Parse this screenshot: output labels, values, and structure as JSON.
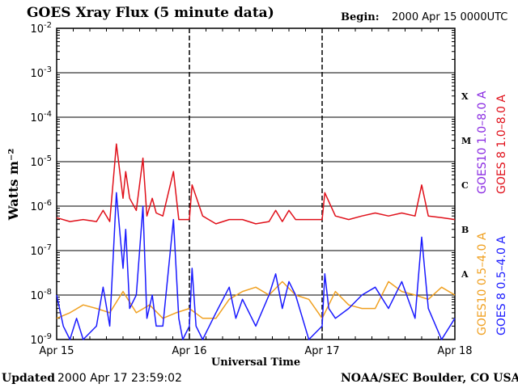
{
  "header": {
    "title": "GOES Xray Flux (5 minute data)",
    "begin_label": "Begin:",
    "begin_value": "2000 Apr 15 0000UTC"
  },
  "footer": {
    "updated_label": "Updated",
    "updated_value": "2000 Apr 17 23:59:02",
    "credit": "NOAA/SEC Boulder, CO USA"
  },
  "colors": {
    "goes8_long": "#e0101a",
    "goes10_long": "#8a2be2",
    "goes10_short": "#f0a020",
    "goes8_short": "#1a1aff",
    "ink": "#000000"
  },
  "chart_data": {
    "type": "line",
    "title": "GOES Xray Flux (5 minute data)",
    "xlabel": "Universal Time",
    "ylabel": "Watts m⁻²",
    "yscale": "log",
    "ylim": [
      1e-09,
      0.01
    ],
    "xlim": [
      0,
      3
    ],
    "y_ticks": [
      {
        "exp": "-2",
        "value": 0.01
      },
      {
        "exp": "-3",
        "value": 0.001
      },
      {
        "exp": "-4",
        "value": 0.0001
      },
      {
        "exp": "-5",
        "value": 1e-05
      },
      {
        "exp": "-6",
        "value": 1e-06
      },
      {
        "exp": "-7",
        "value": 1e-07
      },
      {
        "exp": "-8",
        "value": 1e-08
      },
      {
        "exp": "-9",
        "value": 1e-09
      }
    ],
    "x_ticks": [
      {
        "label": "Apr 15",
        "day": 0
      },
      {
        "label": "Apr 16",
        "day": 1
      },
      {
        "label": "Apr 17",
        "day": 2
      },
      {
        "label": "Apr 18",
        "day": 3
      }
    ],
    "flare_classes": [
      {
        "label": "X",
        "value": 0.0003
      },
      {
        "label": "M",
        "value": 3e-05
      },
      {
        "label": "C",
        "value": 3e-06
      },
      {
        "label": "B",
        "value": 3e-07
      },
      {
        "label": "A",
        "value": 3e-08
      }
    ],
    "legend": [
      {
        "label": "GOES10 1.0–8.0 A",
        "color": "#8a2be2"
      },
      {
        "label": "GOES 8 1.0–8.0 A",
        "color": "#e0101a"
      },
      {
        "label": "GOES10 0.5–4.0 A",
        "color": "#f0a020"
      },
      {
        "label": "GOES 8 0.5–4.0 A",
        "color": "#1a1aff"
      }
    ],
    "series": [
      {
        "name": "GOES 8 1.0–8.0 A",
        "color": "#e0101a",
        "x": [
          0,
          0.1,
          0.2,
          0.3,
          0.35,
          0.4,
          0.45,
          0.5,
          0.52,
          0.55,
          0.6,
          0.65,
          0.68,
          0.72,
          0.75,
          0.8,
          0.88,
          0.92,
          1.0,
          1.02,
          1.1,
          1.2,
          1.3,
          1.4,
          1.5,
          1.6,
          1.65,
          1.7,
          1.75,
          1.8,
          1.9,
          2.0,
          2.02,
          2.1,
          2.2,
          2.3,
          2.4,
          2.5,
          2.6,
          2.7,
          2.75,
          2.8,
          2.9,
          3.0
        ],
        "y": [
          5.5e-07,
          4.5e-07,
          5e-07,
          4.5e-07,
          8e-07,
          4.5e-07,
          2.5e-05,
          1.5e-06,
          6e-06,
          1.5e-06,
          8e-07,
          1.2e-05,
          6e-07,
          1.5e-06,
          7e-07,
          6e-07,
          6e-06,
          5e-07,
          5e-07,
          3e-06,
          6e-07,
          4e-07,
          5e-07,
          5e-07,
          4e-07,
          4.5e-07,
          8e-07,
          4.5e-07,
          8e-07,
          5e-07,
          5e-07,
          5e-07,
          2e-06,
          6e-07,
          5e-07,
          6e-07,
          7e-07,
          6e-07,
          7e-07,
          6e-07,
          3e-06,
          6e-07,
          5.5e-07,
          5e-07
        ]
      },
      {
        "name": "GOES10 0.5–4.0 A",
        "color": "#f0a020",
        "x": [
          0,
          0.1,
          0.2,
          0.3,
          0.4,
          0.5,
          0.6,
          0.7,
          0.8,
          0.9,
          1.0,
          1.1,
          1.2,
          1.3,
          1.4,
          1.5,
          1.6,
          1.7,
          1.8,
          1.9,
          2.0,
          2.1,
          2.2,
          2.3,
          2.4,
          2.5,
          2.6,
          2.7,
          2.8,
          2.9,
          3.0
        ],
        "y": [
          3e-09,
          4e-09,
          6e-09,
          5e-09,
          4e-09,
          1.2e-08,
          4e-09,
          6e-09,
          3e-09,
          4e-09,
          5e-09,
          3e-09,
          3e-09,
          8e-09,
          1.2e-08,
          1.5e-08,
          1e-08,
          2e-08,
          1e-08,
          8e-09,
          3e-09,
          1.2e-08,
          6e-09,
          5e-09,
          5e-09,
          2e-08,
          1.2e-08,
          1e-08,
          8e-09,
          1.5e-08,
          1e-08
        ]
      },
      {
        "name": "GOES 8 0.5–4.0 A",
        "color": "#1a1aff",
        "x": [
          0,
          0.05,
          0.1,
          0.15,
          0.2,
          0.3,
          0.35,
          0.4,
          0.45,
          0.5,
          0.52,
          0.55,
          0.6,
          0.65,
          0.68,
          0.72,
          0.75,
          0.8,
          0.88,
          0.92,
          0.95,
          1.0,
          1.02,
          1.05,
          1.1,
          1.15,
          1.2,
          1.3,
          1.35,
          1.4,
          1.5,
          1.6,
          1.65,
          1.7,
          1.75,
          1.8,
          1.9,
          2.0,
          2.02,
          2.05,
          2.1,
          2.2,
          2.3,
          2.4,
          2.5,
          2.6,
          2.7,
          2.75,
          2.8,
          2.9,
          3.0
        ],
        "y": [
          1e-08,
          2e-09,
          1e-09,
          3e-09,
          1e-09,
          2e-09,
          1.5e-08,
          2e-09,
          2e-06,
          4e-08,
          3e-07,
          5e-09,
          1e-08,
          1e-06,
          3e-09,
          1e-08,
          2e-09,
          2e-09,
          5e-07,
          3e-09,
          1e-09,
          2e-09,
          4e-08,
          2e-09,
          1e-09,
          2e-09,
          4e-09,
          1.5e-08,
          3e-09,
          8e-09,
          2e-09,
          1e-08,
          3e-08,
          5e-09,
          2e-08,
          1e-08,
          1e-09,
          2e-09,
          3e-08,
          5e-09,
          3e-09,
          5e-09,
          1e-08,
          1.5e-08,
          5e-09,
          2e-08,
          3e-09,
          2e-07,
          5e-09,
          1e-09,
          3e-09
        ]
      }
    ]
  }
}
